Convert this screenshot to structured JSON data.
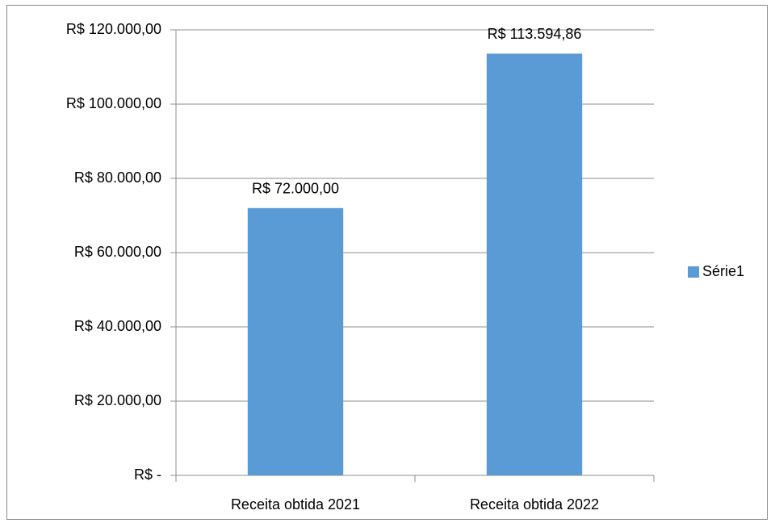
{
  "chart_data": {
    "type": "bar",
    "categories": [
      "Receita obtida 2021",
      "Receita obtida 2022"
    ],
    "series": [
      {
        "name": "Série1",
        "color": "#5b9bd5",
        "values": [
          72000,
          113594.86
        ],
        "value_labels": [
          "R$ 72.000,00",
          "R$ 113.594,86"
        ]
      }
    ],
    "ylim": [
      0,
      120000
    ],
    "yticks": [
      {
        "value": 0,
        "label": "R$ -"
      },
      {
        "value": 20000,
        "label": "R$ 20.000,00"
      },
      {
        "value": 40000,
        "label": "R$ 40.000,00"
      },
      {
        "value": 60000,
        "label": "R$ 60.000,00"
      },
      {
        "value": 80000,
        "label": "R$ 80.000,00"
      },
      {
        "value": 100000,
        "label": "R$ 100.000,00"
      },
      {
        "value": 120000,
        "label": "R$ 120.000,00"
      }
    ],
    "grid": true,
    "legend": "right"
  }
}
